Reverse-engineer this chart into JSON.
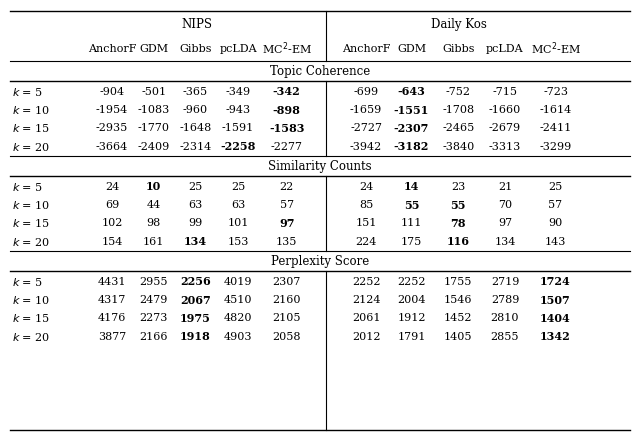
{
  "title_nips": "NIPS",
  "title_dailykos": "Daily Kos",
  "col_headers": [
    "AnchorF",
    "GDM",
    "Gibbs",
    "pcLDA",
    "MC$^2$-EM"
  ],
  "row_labels": [
    "k = 5",
    "k = 10",
    "k = 15",
    "k = 20"
  ],
  "section_headers": [
    "Topic Coherence",
    "Similarity Counts",
    "Perplexity Score"
  ],
  "topic_coherence_nips": [
    [
      "-904",
      "-501",
      "-365",
      "-349",
      "-342"
    ],
    [
      "-1954",
      "-1083",
      "-960",
      "-943",
      "-898"
    ],
    [
      "-2935",
      "-1770",
      "-1648",
      "-1591",
      "-1583"
    ],
    [
      "-3664",
      "-2409",
      "-2314",
      "-2258",
      "-2277"
    ]
  ],
  "topic_coherence_nips_bold": [
    [
      false,
      false,
      false,
      false,
      true
    ],
    [
      false,
      false,
      false,
      false,
      true
    ],
    [
      false,
      false,
      false,
      false,
      true
    ],
    [
      false,
      false,
      false,
      true,
      false
    ]
  ],
  "topic_coherence_dailykos": [
    [
      "-699",
      "-643",
      "-752",
      "-715",
      "-723"
    ],
    [
      "-1659",
      "-1551",
      "-1708",
      "-1660",
      "-1614"
    ],
    [
      "-2727",
      "-2307",
      "-2465",
      "-2679",
      "-2411"
    ],
    [
      "-3942",
      "-3182",
      "-3840",
      "-3313",
      "-3299"
    ]
  ],
  "topic_coherence_dailykos_bold": [
    [
      false,
      true,
      false,
      false,
      false
    ],
    [
      false,
      true,
      false,
      false,
      false
    ],
    [
      false,
      true,
      false,
      false,
      false
    ],
    [
      false,
      true,
      false,
      false,
      false
    ]
  ],
  "similarity_counts_nips": [
    [
      "24",
      "10",
      "25",
      "25",
      "22"
    ],
    [
      "69",
      "44",
      "63",
      "63",
      "57"
    ],
    [
      "102",
      "98",
      "99",
      "101",
      "97"
    ],
    [
      "154",
      "161",
      "134",
      "153",
      "135"
    ]
  ],
  "similarity_counts_nips_bold": [
    [
      false,
      true,
      false,
      false,
      false
    ],
    [
      false,
      false,
      false,
      false,
      false
    ],
    [
      false,
      false,
      false,
      false,
      true
    ],
    [
      false,
      false,
      true,
      false,
      false
    ]
  ],
  "similarity_counts_dailykos": [
    [
      "24",
      "14",
      "23",
      "21",
      "25"
    ],
    [
      "85",
      "55",
      "55",
      "70",
      "57"
    ],
    [
      "151",
      "111",
      "78",
      "97",
      "90"
    ],
    [
      "224",
      "175",
      "116",
      "134",
      "143"
    ]
  ],
  "similarity_counts_dailykos_bold": [
    [
      false,
      true,
      false,
      false,
      false
    ],
    [
      false,
      true,
      true,
      false,
      false
    ],
    [
      false,
      false,
      true,
      false,
      false
    ],
    [
      false,
      false,
      true,
      false,
      false
    ]
  ],
  "perplexity_nips": [
    [
      "4431",
      "2955",
      "2256",
      "4019",
      "2307"
    ],
    [
      "4317",
      "2479",
      "2067",
      "4510",
      "2160"
    ],
    [
      "4176",
      "2273",
      "1975",
      "4820",
      "2105"
    ],
    [
      "3877",
      "2166",
      "1918",
      "4903",
      "2058"
    ]
  ],
  "perplexity_nips_bold": [
    [
      false,
      false,
      true,
      false,
      false
    ],
    [
      false,
      false,
      true,
      false,
      false
    ],
    [
      false,
      false,
      true,
      false,
      false
    ],
    [
      false,
      false,
      true,
      false,
      false
    ]
  ],
  "perplexity_dailykos": [
    [
      "2252",
      "2252",
      "1755",
      "2719",
      "1724"
    ],
    [
      "2124",
      "2004",
      "1546",
      "2789",
      "1507"
    ],
    [
      "2061",
      "1912",
      "1452",
      "2810",
      "1404"
    ],
    [
      "2012",
      "1791",
      "1405",
      "2855",
      "1342"
    ]
  ],
  "perplexity_dailykos_bold": [
    [
      false,
      false,
      false,
      false,
      true
    ],
    [
      false,
      false,
      false,
      false,
      true
    ],
    [
      false,
      false,
      false,
      false,
      true
    ],
    [
      false,
      false,
      false,
      false,
      true
    ]
  ],
  "figsize": [
    6.4,
    4.44
  ],
  "dpi": 100
}
